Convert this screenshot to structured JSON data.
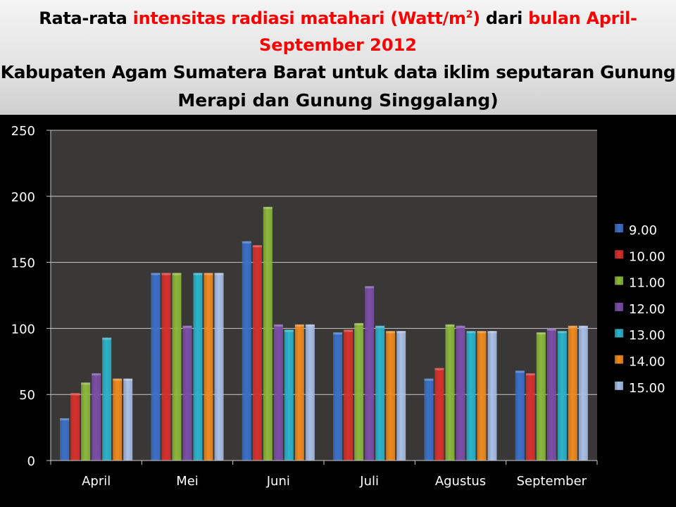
{
  "title": {
    "line1_a": "Rata-rata ",
    "line1_b": "intensitas radiasi matahari (Watt/m",
    "line1_sup": "2",
    "line1_c": ")",
    "line1_d": " dari ",
    "line1_e": "bulan April-",
    "line2": "September 2012",
    "line3": "Kabupaten Agam Sumatera Barat untuk data iklim seputaran Gunung",
    "line4": "Merapi dan Gunung Singgalang)"
  },
  "colors": {
    "title_red": "#ff0000",
    "plot_background": "#3a3837",
    "gridline": "#c8c8c8",
    "axis_text": "#ffffff"
  },
  "chart_data": {
    "type": "bar",
    "categories": [
      "April",
      "Mei",
      "Juni",
      "Juli",
      "Agustus",
      "September"
    ],
    "ylim": [
      0,
      250
    ],
    "yticks": [
      0,
      50,
      100,
      150,
      200,
      250
    ],
    "grid": true,
    "legend_position": "right",
    "series": [
      {
        "name": "9.00",
        "color": "#3b70c8",
        "values": [
          32,
          142,
          166,
          97,
          62,
          68
        ]
      },
      {
        "name": "10.00",
        "color": "#d8302c",
        "values": [
          51,
          142,
          163,
          99,
          70,
          66
        ]
      },
      {
        "name": "11.00",
        "color": "#8cb83a",
        "values": [
          59,
          142,
          192,
          104,
          103,
          97
        ]
      },
      {
        "name": "12.00",
        "color": "#7b4ea8",
        "values": [
          66,
          102,
          103,
          132,
          102,
          100
        ]
      },
      {
        "name": "13.00",
        "color": "#2ab4cc",
        "values": [
          93,
          142,
          99,
          102,
          98,
          98
        ]
      },
      {
        "name": "14.00",
        "color": "#f08a1e",
        "values": [
          62,
          142,
          103,
          98,
          98,
          102
        ]
      },
      {
        "name": "15.00",
        "color": "#a9bfe6",
        "values": [
          62,
          142,
          103,
          98,
          98,
          102
        ]
      }
    ]
  }
}
